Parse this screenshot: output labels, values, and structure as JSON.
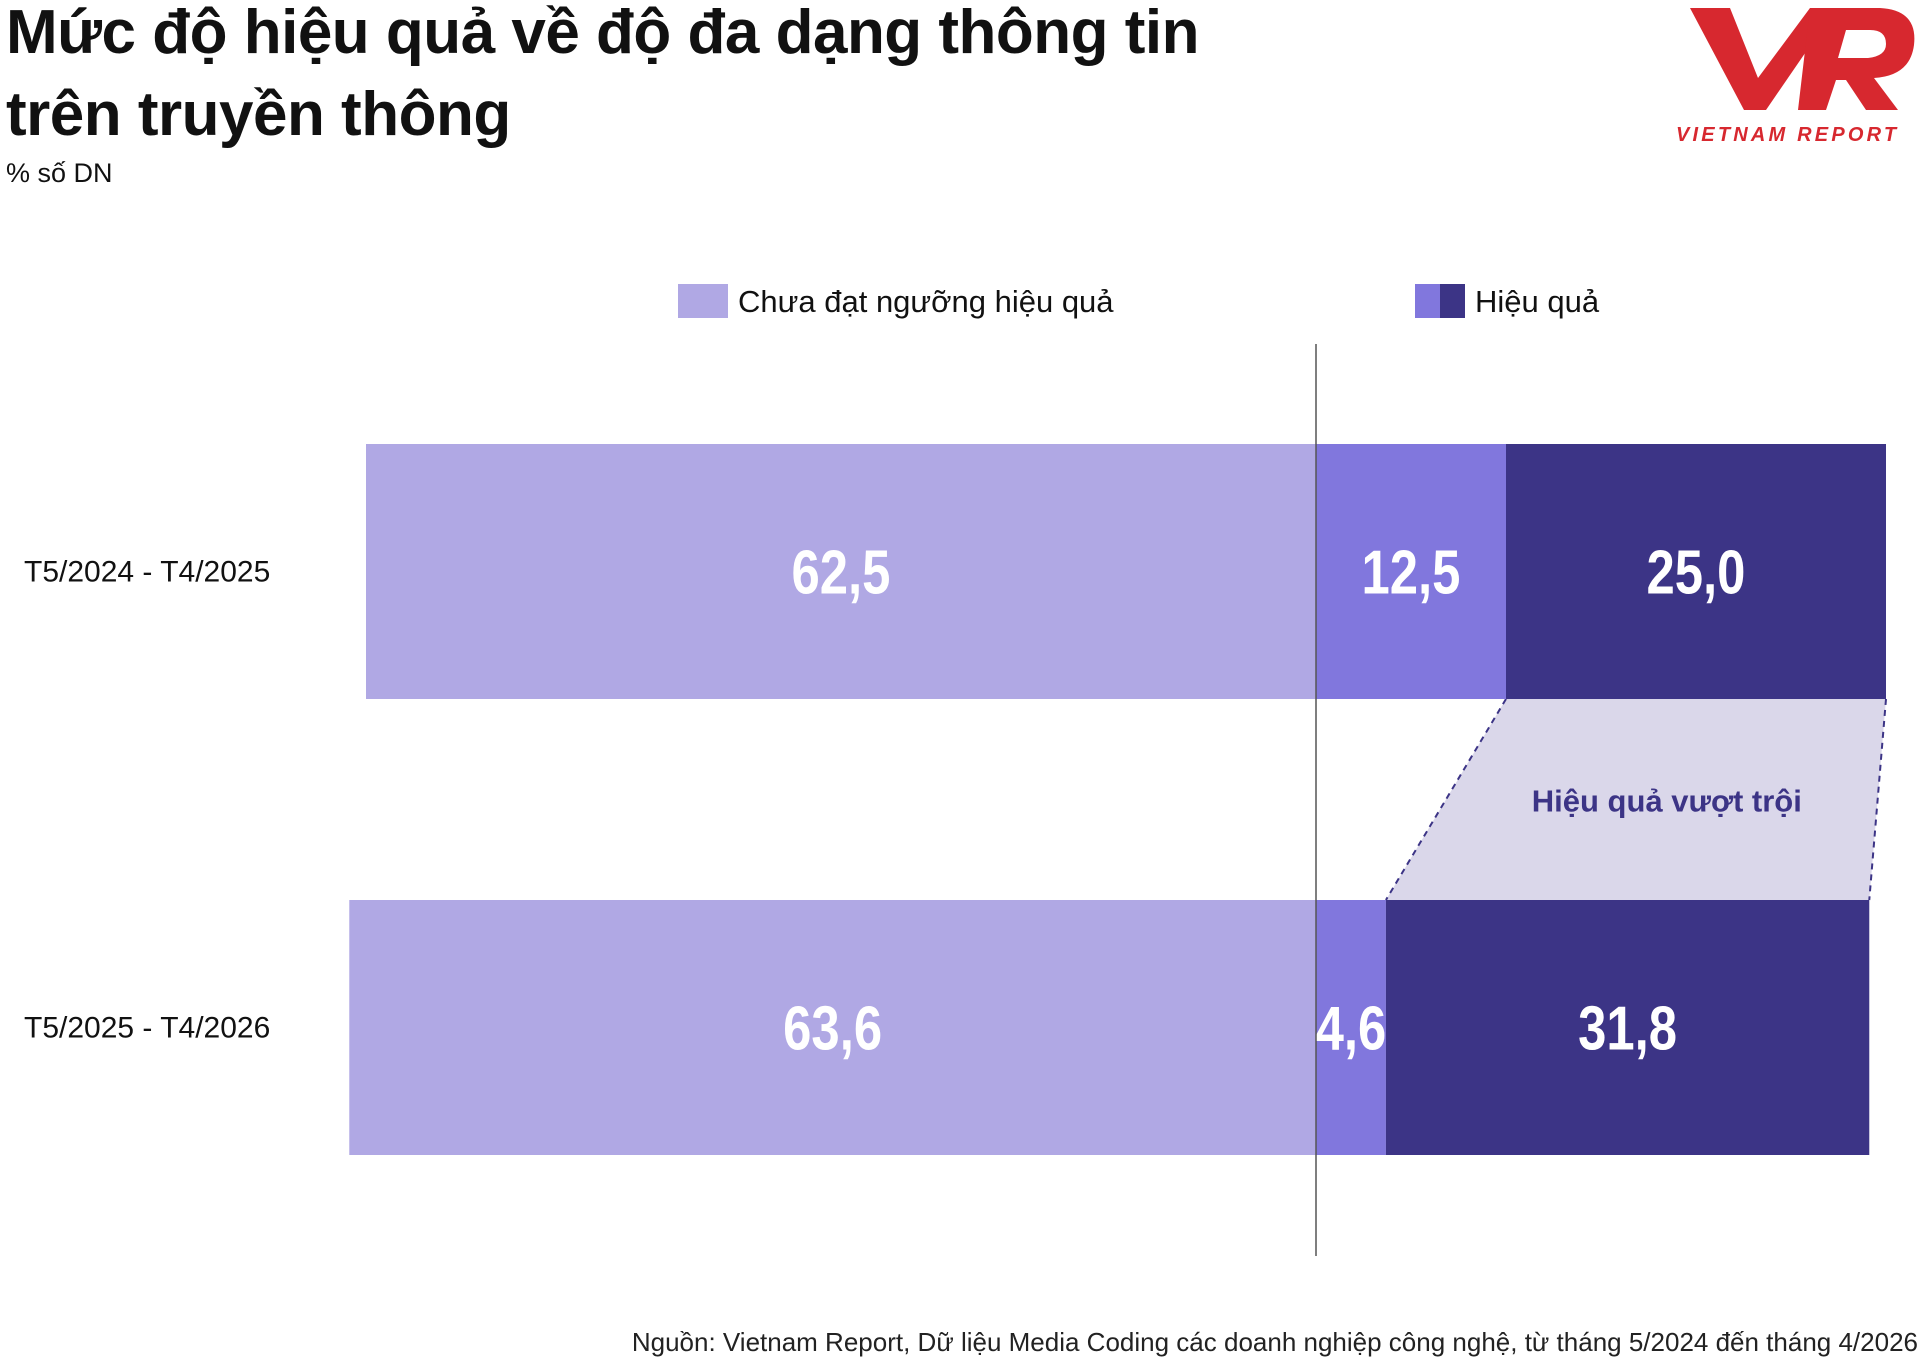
{
  "header": {
    "title": "Mức độ hiệu quả về độ đa dạng thông tin trên truyền thông",
    "subtitle": "% số DN"
  },
  "logo": {
    "mark": "VNR",
    "caption": "VIETNAM REPORT",
    "color": "#d7282f"
  },
  "chart_data": {
    "type": "bar",
    "orientation": "horizontal",
    "stacked": "diverging",
    "categories": [
      "T5/2024 - T4/2025",
      "T5/2025 - T4/2026"
    ],
    "series": [
      {
        "name": "Chưa đạt ngưỡng hiệu quả",
        "values": [
          62.5,
          63.6
        ],
        "labels": [
          "62,5",
          "63,6"
        ],
        "color": "#b0a8e4",
        "side": "left"
      },
      {
        "name": "",
        "values": [
          12.5,
          4.6
        ],
        "labels": [
          "12,5",
          "4,6"
        ],
        "color": "#8177dd",
        "side": "right"
      },
      {
        "name": "",
        "values": [
          25.0,
          31.8
        ],
        "labels": [
          "25,0",
          "31,8"
        ],
        "color": "#3c3486",
        "side": "right"
      }
    ],
    "legend": [
      {
        "label": "Chưa đạt ngưỡng hiệu quả",
        "colors": [
          "#b0a8e4"
        ]
      },
      {
        "label": "Hiệu quả",
        "colors": [
          "#8177dd",
          "#3c3486"
        ]
      }
    ],
    "legend_position": "top",
    "annotation": {
      "text": "Hiệu quả vượt trội",
      "series_index": 2,
      "color": "#3c3486",
      "fill": "#dad7ea"
    },
    "xlabel": "",
    "ylabel": "",
    "grid": false,
    "xlim": [
      -100,
      100
    ]
  },
  "footer": {
    "source": "Nguồn: Vietnam Report, Dữ liệu Media Coding các doanh nghiệp công nghệ, từ tháng 5/2024 đến tháng 4/2026"
  }
}
